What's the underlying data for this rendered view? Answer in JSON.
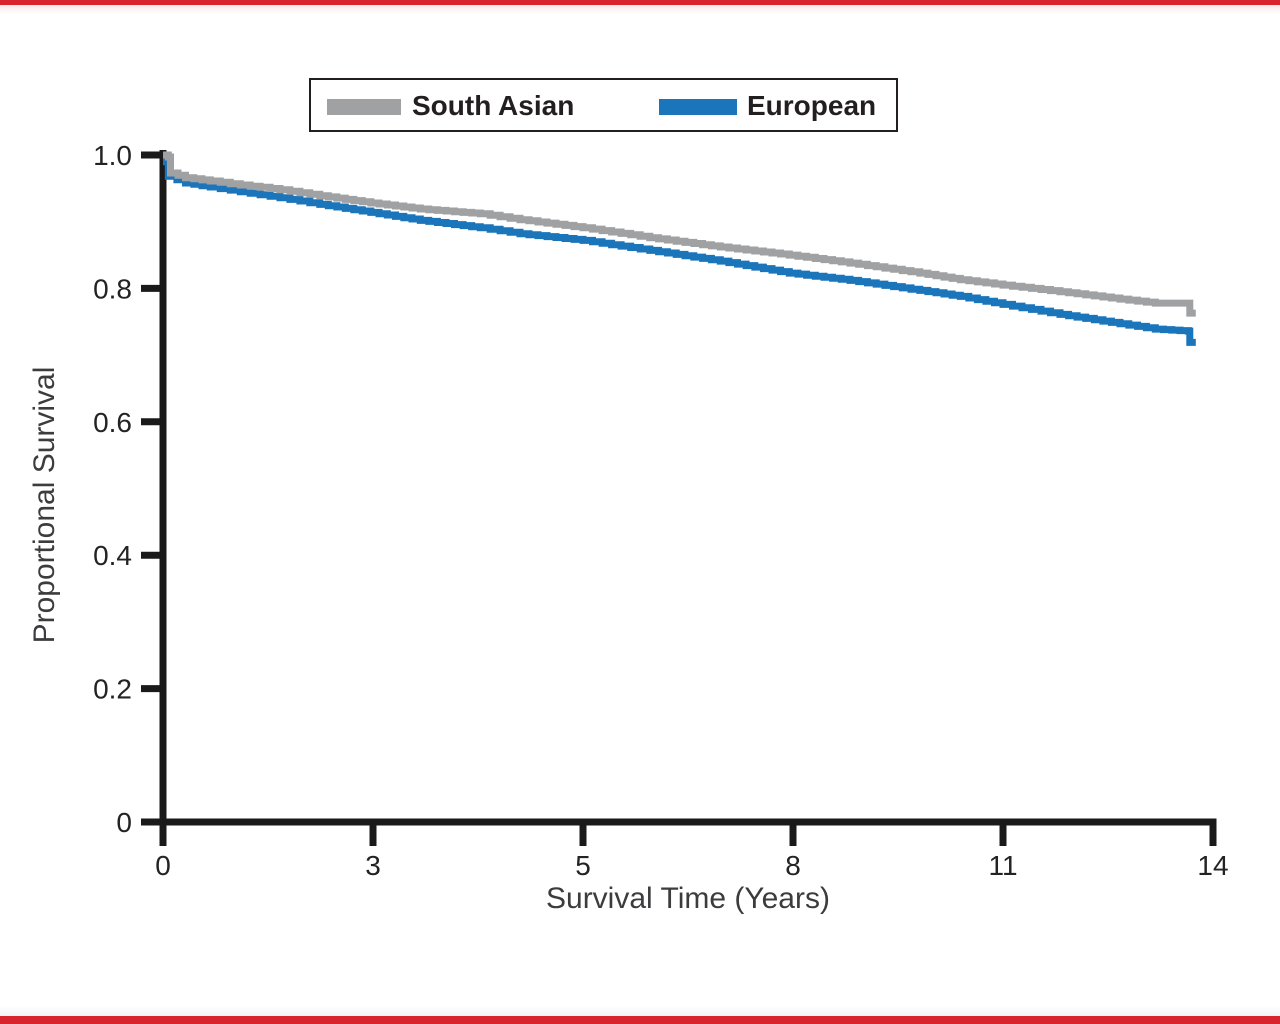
{
  "page": {
    "background": "#ffffff",
    "top_border_color": "#d8242c",
    "bottom_border_color": "#d8242c"
  },
  "legend": {
    "items": [
      {
        "label": "South Asian",
        "color": "#a0a1a3",
        "icon": "gray-line-swatch"
      },
      {
        "label": "European",
        "color": "#1b75bb",
        "icon": "blue-line-swatch"
      }
    ]
  },
  "chart_data": {
    "type": "line",
    "subtype": "kaplan-meier-step-curve",
    "title": "",
    "xlabel": "Survival Time (Years)",
    "ylabel": "Proportional Survival",
    "xlim": [
      0,
      14
    ],
    "ylim": [
      0,
      1.0
    ],
    "grid": false,
    "legend_position": "top-center-boxed",
    "x_tick_labels": [
      "0",
      "3",
      "5",
      "8",
      "11",
      "14"
    ],
    "y_tick_labels": [
      "1.0",
      "0.8",
      "0.6",
      "0.4",
      "0.2",
      "0"
    ],
    "y_tick_values": [
      1.0,
      0.8,
      0.6,
      0.4,
      0.2,
      0
    ],
    "axis_color": "#1a1a1a",
    "series": [
      {
        "name": "South Asian",
        "color": "#a0a1a3",
        "points": [
          [
            0,
            1.0
          ],
          [
            0.07,
            0.997
          ],
          [
            0.1,
            0.973
          ],
          [
            0.3,
            0.966
          ],
          [
            0.63,
            0.961
          ],
          [
            1.03,
            0.955
          ],
          [
            1.56,
            0.948
          ],
          [
            2.09,
            0.939
          ],
          [
            2.77,
            0.928
          ],
          [
            3.43,
            0.919
          ],
          [
            4.23,
            0.912
          ],
          [
            4.76,
            0.903
          ],
          [
            5.6,
            0.891
          ],
          [
            6.49,
            0.876
          ],
          [
            7.43,
            0.862
          ],
          [
            8.35,
            0.85
          ],
          [
            9.16,
            0.838
          ],
          [
            10.09,
            0.823
          ],
          [
            10.63,
            0.813
          ],
          [
            11.2,
            0.805
          ],
          [
            11.96,
            0.795
          ],
          [
            12.76,
            0.784
          ],
          [
            13.23,
            0.778
          ],
          [
            13.67,
            0.778
          ],
          [
            13.69,
            0.763
          ],
          [
            13.77,
            0.763
          ]
        ]
      },
      {
        "name": "European",
        "color": "#1b75bb",
        "points": [
          [
            0,
            0.99
          ],
          [
            0.07,
            0.968
          ],
          [
            0.3,
            0.958
          ],
          [
            0.63,
            0.952
          ],
          [
            1.03,
            0.945
          ],
          [
            1.56,
            0.936
          ],
          [
            2.09,
            0.926
          ],
          [
            2.77,
            0.914
          ],
          [
            3.43,
            0.902
          ],
          [
            4.23,
            0.891
          ],
          [
            4.76,
            0.882
          ],
          [
            5.6,
            0.872
          ],
          [
            6.49,
            0.857
          ],
          [
            7.43,
            0.841
          ],
          [
            8.35,
            0.823
          ],
          [
            9.16,
            0.812
          ],
          [
            10.09,
            0.797
          ],
          [
            10.63,
            0.788
          ],
          [
            11.2,
            0.776
          ],
          [
            11.96,
            0.761
          ],
          [
            12.76,
            0.747
          ],
          [
            13.23,
            0.739
          ],
          [
            13.67,
            0.736
          ],
          [
            13.69,
            0.719
          ],
          [
            13.77,
            0.719
          ]
        ]
      }
    ]
  }
}
